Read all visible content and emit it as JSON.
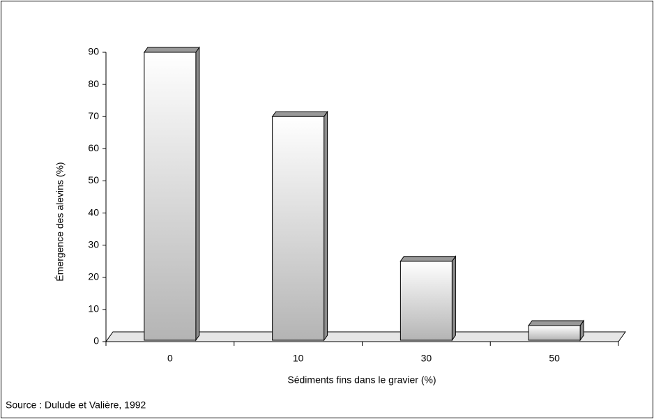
{
  "chart_data": {
    "type": "bar",
    "x_label": "Sédiments fins dans le gravier (%)",
    "y_label": "Émergence des alevins (%)",
    "source": "Source : Dulude et Valière, 1992",
    "categories": [
      "0",
      "10",
      "30",
      "50"
    ],
    "values": [
      90,
      70,
      25,
      5
    ],
    "color": "#b4b4b4",
    "ylim": [
      0,
      90
    ],
    "yticks": [
      0,
      10,
      20,
      30,
      40,
      50,
      60,
      70,
      80,
      90
    ]
  }
}
